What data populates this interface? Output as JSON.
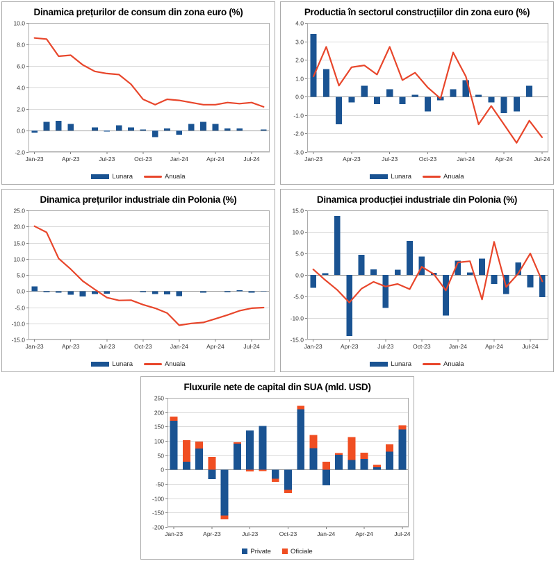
{
  "page": {
    "background": "#ffffff"
  },
  "colors": {
    "bar_blue": "#1a5392",
    "line_red": "#e8462b",
    "orange_red": "#f04e22",
    "grid": "#d9d9d9",
    "zero_line": "#9b9b9b",
    "plot_border": "#ababab",
    "tick_text": "#333333"
  },
  "chart_data": [
    {
      "type": "bar+line",
      "title": "Dinamica prețurilor de consum din zona euro (%)",
      "legend": [
        "Lunara",
        "Anuala"
      ],
      "legend_position": "bottom",
      "grid": true,
      "categories": [
        "Jan-23",
        "Feb-23",
        "Mar-23",
        "Apr-23",
        "May-23",
        "Jun-23",
        "Jul-23",
        "Aug-23",
        "Sep-23",
        "Oct-23",
        "Nov-23",
        "Dec-23",
        "Jan-24",
        "Feb-24",
        "Mar-24",
        "Apr-24",
        "May-24",
        "Jun-24",
        "Jul-24",
        "Aug-24"
      ],
      "xlabel_every": 3,
      "ylim": [
        -2.0,
        10.0
      ],
      "ytick": 2.0,
      "ydecimals": 1,
      "series": [
        {
          "name": "Lunara",
          "kind": "bar",
          "color": "#1a5392",
          "values": [
            -0.2,
            0.8,
            0.9,
            0.6,
            0.0,
            0.3,
            -0.1,
            0.5,
            0.3,
            0.1,
            -0.6,
            0.2,
            -0.4,
            0.6,
            0.8,
            0.6,
            0.2,
            0.2,
            0.0,
            0.1
          ]
        },
        {
          "name": "Anuala",
          "kind": "line",
          "color": "#e8462b",
          "values": [
            8.6,
            8.5,
            6.9,
            7.0,
            6.1,
            5.5,
            5.3,
            5.2,
            4.3,
            2.9,
            2.4,
            2.9,
            2.8,
            2.6,
            2.4,
            2.4,
            2.6,
            2.5,
            2.6,
            2.2
          ]
        }
      ]
    },
    {
      "type": "bar+line",
      "title": "Productia în sectorul construcțiilor din zona euro (%)",
      "legend": [
        "Lunara",
        "Anuala"
      ],
      "legend_position": "bottom",
      "grid": true,
      "categories": [
        "Jan-23",
        "Feb-23",
        "Mar-23",
        "Apr-23",
        "May-23",
        "Jun-23",
        "Jul-23",
        "Aug-23",
        "Sep-23",
        "Oct-23",
        "Nov-23",
        "Dec-23",
        "Jan-24",
        "Feb-24",
        "Mar-24",
        "Apr-24",
        "May-24",
        "Jun-24",
        "Jul-24"
      ],
      "xlabel_every": 3,
      "ylim": [
        -3.0,
        4.0
      ],
      "ytick": 1.0,
      "ydecimals": 1,
      "series": [
        {
          "name": "Lunara",
          "kind": "bar",
          "color": "#1a5392",
          "values": [
            3.4,
            1.5,
            -1.5,
            -0.3,
            0.6,
            -0.4,
            0.4,
            -0.4,
            0.1,
            -0.8,
            -0.2,
            0.4,
            0.9,
            0.1,
            -0.3,
            -0.9,
            -0.8,
            0.6,
            0.0
          ]
        },
        {
          "name": "Anuala",
          "kind": "line",
          "color": "#e8462b",
          "values": [
            1.1,
            2.7,
            0.6,
            1.6,
            1.7,
            1.2,
            2.7,
            0.9,
            1.3,
            0.5,
            -0.1,
            2.4,
            1.1,
            -1.5,
            -0.5,
            -1.5,
            -2.5,
            -1.3,
            -2.2
          ]
        }
      ]
    },
    {
      "type": "bar+line",
      "title": "Dinamica prețurilor industriale din Polonia (%)",
      "legend": [
        "Lunara",
        "Anuala"
      ],
      "legend_position": "bottom",
      "grid": true,
      "categories": [
        "Jan-23",
        "Feb-23",
        "Mar-23",
        "Apr-23",
        "May-23",
        "Jun-23",
        "Jul-23",
        "Aug-23",
        "Sep-23",
        "Oct-23",
        "Nov-23",
        "Dec-23",
        "Jan-24",
        "Feb-24",
        "Mar-24",
        "Apr-24",
        "May-24",
        "Jun-24",
        "Jul-24",
        "Aug-24"
      ],
      "xlabel_every": 3,
      "ylim": [
        -15.0,
        25.0
      ],
      "ytick": 5.0,
      "ydecimals": 1,
      "series": [
        {
          "name": "Lunara",
          "kind": "bar",
          "color": "#1a5392",
          "values": [
            1.5,
            -0.4,
            -0.5,
            -1.1,
            -1.7,
            -0.9,
            -0.8,
            -0.1,
            0.1,
            -0.4,
            -0.9,
            -1.0,
            -1.6,
            0.0,
            -0.5,
            0.1,
            -0.4,
            0.3,
            -0.5,
            -0.2
          ]
        },
        {
          "name": "Anuala",
          "kind": "line",
          "color": "#e8462b",
          "values": [
            20.1,
            18.2,
            10.1,
            6.8,
            3.1,
            0.5,
            -2.0,
            -2.9,
            -2.8,
            -4.2,
            -5.3,
            -6.8,
            -10.6,
            -10.0,
            -9.7,
            -8.6,
            -7.4,
            -6.1,
            -5.3,
            -5.1
          ]
        }
      ]
    },
    {
      "type": "bar+line",
      "title": "Dinamica producției industriale din Polonia (%)",
      "legend": [
        "Lunara",
        "Anuala"
      ],
      "legend_position": "bottom",
      "grid": true,
      "categories": [
        "Jan-23",
        "Feb-23",
        "Mar-23",
        "Apr-23",
        "May-23",
        "Jun-23",
        "Jul-23",
        "Aug-23",
        "Sep-23",
        "Oct-23",
        "Nov-23",
        "Dec-23",
        "Jan-24",
        "Feb-24",
        "Mar-24",
        "Apr-24",
        "May-24",
        "Jun-24",
        "Jul-24",
        "Aug-24"
      ],
      "xlabel_every": 3,
      "ylim": [
        -15.0,
        15.0
      ],
      "ytick": 5.0,
      "ydecimals": 1,
      "series": [
        {
          "name": "Lunara",
          "kind": "bar",
          "color": "#1a5392",
          "values": [
            -3.0,
            0.4,
            13.7,
            -14.2,
            4.7,
            1.3,
            -7.7,
            1.2,
            7.9,
            4.3,
            0.5,
            -9.4,
            3.3,
            0.6,
            3.8,
            -2.1,
            -4.4,
            2.9,
            -2.9,
            -5.2
          ]
        },
        {
          "name": "Anuala",
          "kind": "line",
          "color": "#e8462b",
          "values": [
            1.3,
            -1.2,
            -3.5,
            -6.4,
            -3.2,
            -1.6,
            -2.7,
            -2.1,
            -3.3,
            1.9,
            0.2,
            -3.6,
            2.9,
            3.2,
            -5.7,
            7.7,
            -2.8,
            0.3,
            5.0,
            -1.5
          ]
        }
      ]
    },
    {
      "type": "stacked-bar",
      "title": "Fluxurile nete de capital din SUA (mld. USD)",
      "legend": [
        "Private",
        "Oficiale"
      ],
      "legend_position": "bottom",
      "grid": true,
      "categories": [
        "Jan-23",
        "Feb-23",
        "Mar-23",
        "Apr-23",
        "May-23",
        "Jun-23",
        "Jul-23",
        "Aug-23",
        "Sep-23",
        "Oct-23",
        "Nov-23",
        "Dec-23",
        "Jan-24",
        "Feb-24",
        "Mar-24",
        "Apr-24",
        "May-24",
        "Jun-24",
        "Jul-24"
      ],
      "xlabel_every": 3,
      "ylim": [
        -200,
        250
      ],
      "ytick": 50,
      "ydecimals": 0,
      "series": [
        {
          "name": "Private",
          "kind": "bar",
          "color": "#1a5392",
          "values": [
            170,
            27,
            73,
            -33,
            -160,
            90,
            136,
            152,
            -32,
            -70,
            210,
            75,
            -55,
            52,
            33,
            37,
            8,
            63,
            140
          ]
        },
        {
          "name": "Oficiale",
          "kind": "bar-stacked",
          "color": "#f04e22",
          "values": [
            15,
            75,
            24,
            44,
            -13,
            5,
            -6,
            -5,
            -11,
            -12,
            12,
            46,
            27,
            6,
            80,
            22,
            8,
            25,
            14
          ]
        }
      ]
    }
  ]
}
